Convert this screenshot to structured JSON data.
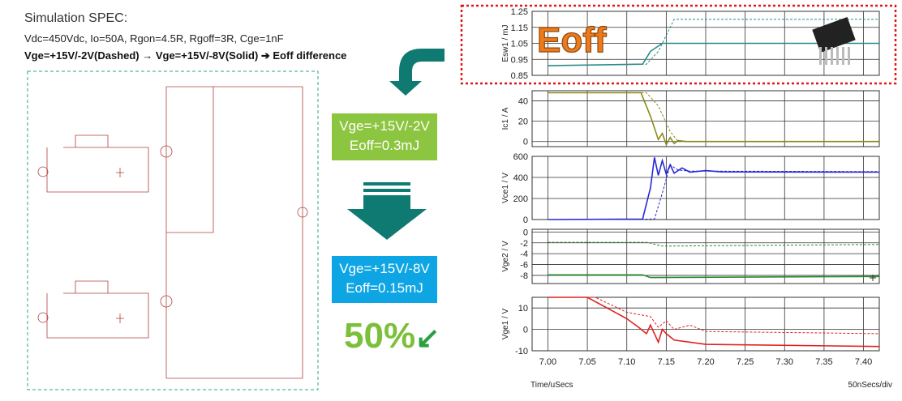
{
  "spec": {
    "title": "Simulation SPEC:",
    "params": "Vdc=450Vdc, Io=50A, Rgon=4.5R, Rgoff=3R, Cge=1nF",
    "difference": "Vge=+15V/-2V(Dashed) → Vge=+15V/-8V(Solid)  ➔ Eoff difference"
  },
  "before": {
    "vge": "Vge=+15V/-2V",
    "eoff": "Eoff=0.3mJ",
    "color": "#8cc53f"
  },
  "after": {
    "vge": "Vge=+15V/-8V",
    "eoff": "Eoff=0.15mJ",
    "color": "#0ea5e4"
  },
  "reduction": "50%",
  "eoff_label": "Eoff",
  "bottom": {
    "left": "Time/uSecs",
    "right": "50nSecs/div"
  },
  "chart_data": [
    {
      "type": "line",
      "ylabel": "Esw1 / mJ",
      "ylim": [
        0.85,
        1.25
      ],
      "yticks": [
        "0.85",
        "0.95",
        "1.05",
        "1.15",
        "1.25"
      ],
      "series": [
        {
          "values": [
            [
              7.0,
              0.91
            ],
            [
              7.12,
              0.92
            ],
            [
              7.13,
              1.0
            ],
            [
              7.145,
              1.05
            ],
            [
              7.42,
              1.05
            ]
          ],
          "color": "#2a8a8a",
          "dashed": false
        },
        {
          "values": [
            [
              7.0,
              0.91
            ],
            [
              7.125,
              0.92
            ],
            [
              7.14,
              1.0
            ],
            [
              7.16,
              1.2
            ],
            [
              7.42,
              1.2
            ]
          ],
          "color": "#2a8a8a",
          "dashed": true
        }
      ]
    },
    {
      "type": "line",
      "ylabel": "Ic1 / A",
      "ylim": [
        -5,
        50
      ],
      "yticks": [
        "0",
        "20",
        "40"
      ],
      "series": [
        {
          "values": [
            [
              7.0,
              48
            ],
            [
              7.118,
              48
            ],
            [
              7.13,
              25
            ],
            [
              7.14,
              2
            ],
            [
              7.145,
              8
            ],
            [
              7.15,
              -3
            ],
            [
              7.155,
              4
            ],
            [
              7.16,
              -2
            ],
            [
              7.165,
              1
            ],
            [
              7.175,
              0
            ],
            [
              7.42,
              0
            ]
          ],
          "color": "#8a8a1a",
          "dashed": false
        },
        {
          "values": [
            [
              7.0,
              48
            ],
            [
              7.125,
              48
            ],
            [
              7.14,
              35
            ],
            [
              7.155,
              10
            ],
            [
              7.165,
              0
            ],
            [
              7.42,
              0
            ]
          ],
          "color": "#8a8a1a",
          "dashed": true
        }
      ]
    },
    {
      "type": "line",
      "ylabel": "Vce1 / V",
      "ylim": [
        0,
        600
      ],
      "yticks": [
        "0",
        "200",
        "400",
        "600"
      ],
      "series": [
        {
          "values": [
            [
              7.0,
              0
            ],
            [
              7.12,
              5
            ],
            [
              7.13,
              300
            ],
            [
              7.135,
              590
            ],
            [
              7.14,
              420
            ],
            [
              7.145,
              560
            ],
            [
              7.15,
              430
            ],
            [
              7.155,
              520
            ],
            [
              7.16,
              440
            ],
            [
              7.17,
              490
            ],
            [
              7.18,
              450
            ],
            [
              7.2,
              465
            ],
            [
              7.22,
              452
            ],
            [
              7.42,
              450
            ]
          ],
          "color": "#2828d8",
          "dashed": false
        },
        {
          "values": [
            [
              7.0,
              0
            ],
            [
              7.135,
              5
            ],
            [
              7.145,
              250
            ],
            [
              7.155,
              520
            ],
            [
              7.165,
              470
            ],
            [
              7.18,
              460
            ],
            [
              7.42,
              455
            ]
          ],
          "color": "#2828d8",
          "dashed": true
        }
      ]
    },
    {
      "type": "line",
      "ylabel": "Vge2 / V",
      "ylim": [
        -9.5,
        0.5
      ],
      "yticks": [
        "0",
        "-2",
        "-4",
        "-6",
        "-8"
      ],
      "series": [
        {
          "values": [
            [
              7.0,
              -7.9
            ],
            [
              7.12,
              -7.9
            ],
            [
              7.13,
              -8.4
            ],
            [
              7.42,
              -8.2
            ]
          ],
          "color": "#2a8a2a",
          "dashed": false
        },
        {
          "values": [
            [
              7.0,
              -1.9
            ],
            [
              7.125,
              -1.9
            ],
            [
              7.145,
              -2.6
            ],
            [
              7.42,
              -2.3
            ]
          ],
          "color": "#2a8a2a",
          "dashed": true
        }
      ]
    },
    {
      "type": "line",
      "ylabel": "Vge1 / V",
      "ylim": [
        -10,
        15
      ],
      "yticks": [
        "10",
        "0",
        "-10"
      ],
      "series": [
        {
          "values": [
            [
              7.0,
              15
            ],
            [
              7.05,
              15
            ],
            [
              7.08,
              9
            ],
            [
              7.1,
              5
            ],
            [
              7.115,
              1
            ],
            [
              7.125,
              -2
            ],
            [
              7.13,
              2
            ],
            [
              7.14,
              -6
            ],
            [
              7.145,
              0
            ],
            [
              7.15,
              -2
            ],
            [
              7.16,
              -5
            ],
            [
              7.2,
              -7
            ],
            [
              7.42,
              -8
            ]
          ],
          "color": "#e02020",
          "dashed": false
        },
        {
          "values": [
            [
              7.0,
              15
            ],
            [
              7.06,
              15
            ],
            [
              7.1,
              8
            ],
            [
              7.13,
              6
            ],
            [
              7.14,
              1
            ],
            [
              7.15,
              4
            ],
            [
              7.16,
              0
            ],
            [
              7.18,
              2
            ],
            [
              7.2,
              -1
            ],
            [
              7.42,
              -2
            ]
          ],
          "color": "#e02020",
          "dashed": true
        }
      ]
    }
  ],
  "xticks": [
    "7.00",
    "7.05",
    "7.10",
    "7.15",
    "7.20",
    "7.25",
    "7.30",
    "7.35",
    "7.40"
  ]
}
